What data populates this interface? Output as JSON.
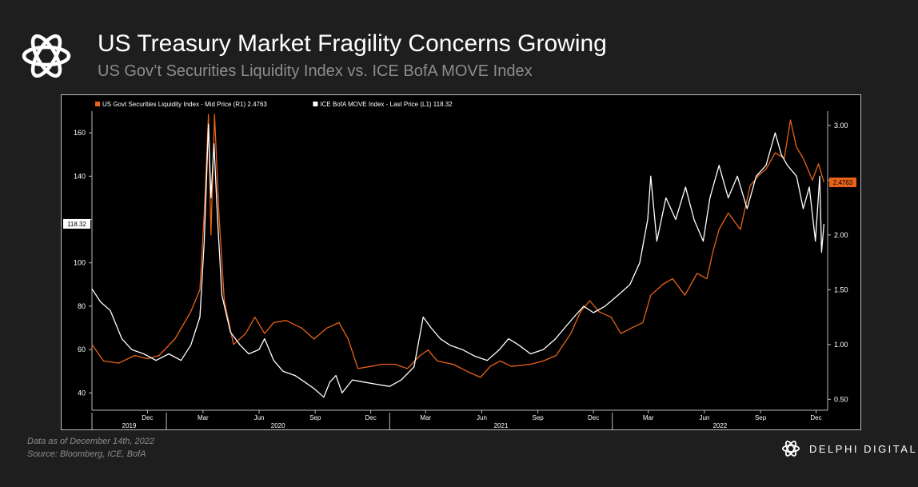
{
  "header": {
    "title": "US Treasury Market Fragility Concerns Growing",
    "subtitle": "US Gov’t Securities Liquidity Index vs. ICE BofA MOVE Index"
  },
  "footer": {
    "note_date": "Data as of December 14th, 2022",
    "note_source": "Source: Bloomberg, ICE, BofA",
    "brand": "DELPHI DIGITAL"
  },
  "colors": {
    "orange": "#e8621a",
    "white": "#ffffff",
    "axis": "#bdbdbd"
  },
  "chart_data": {
    "type": "line",
    "title": "",
    "legend_placement": "top-left",
    "grid": false,
    "x_range": [
      "2019-09-01",
      "2022-12-20"
    ],
    "y_left": {
      "ticks": [
        40,
        60,
        80,
        100,
        120,
        140,
        160
      ],
      "labels": [
        "40",
        "60",
        "80",
        "100",
        "",
        "140",
        "160"
      ],
      "range": [
        32,
        170
      ]
    },
    "y_right": {
      "ticks": [
        0.5,
        1.0,
        1.5,
        2.0,
        2.5,
        3.0
      ],
      "labels": [
        "0.50",
        "1.00",
        "1.50",
        "2.00",
        "",
        "3.00"
      ],
      "range": [
        0.4,
        3.13
      ]
    },
    "x_ticks": [
      {
        "date": "2019-12-01",
        "label": "Dec"
      },
      {
        "date": "2020-03-01",
        "label": "Mar"
      },
      {
        "date": "2020-06-01",
        "label": "Jun"
      },
      {
        "date": "2020-09-01",
        "label": "Sep"
      },
      {
        "date": "2020-12-01",
        "label": "Dec"
      },
      {
        "date": "2021-03-01",
        "label": "Mar"
      },
      {
        "date": "2021-06-01",
        "label": "Jun"
      },
      {
        "date": "2021-09-01",
        "label": "Sep"
      },
      {
        "date": "2021-12-01",
        "label": "Dec"
      },
      {
        "date": "2022-03-01",
        "label": "Mar"
      },
      {
        "date": "2022-06-01",
        "label": "Jun"
      },
      {
        "date": "2022-09-01",
        "label": "Sep"
      },
      {
        "date": "2022-12-01",
        "label": "Dec"
      }
    ],
    "years": [
      {
        "label": "2019",
        "start": "2019-09-01",
        "end": "2020-01-01"
      },
      {
        "label": "2020",
        "start": "2020-01-01",
        "end": "2021-01-01"
      },
      {
        "label": "2021",
        "start": "2021-01-01",
        "end": "2022-01-01"
      },
      {
        "label": "2022",
        "start": "2022-01-01",
        "end": "2022-12-20"
      }
    ],
    "series": [
      {
        "name": "US Govt Securities Liquidity Index - Mid Price (R1) 2.4763",
        "axis": "right",
        "color": "#e8621a",
        "last_value_label": "2.4763",
        "points": [
          [
            "2019-09-01",
            1.0
          ],
          [
            "2019-09-20",
            0.85
          ],
          [
            "2019-10-15",
            0.83
          ],
          [
            "2019-11-10",
            0.9
          ],
          [
            "2019-12-01",
            0.87
          ],
          [
            "2019-12-20",
            0.9
          ],
          [
            "2020-01-15",
            1.05
          ],
          [
            "2020-02-10",
            1.3
          ],
          [
            "2020-02-25",
            1.5
          ],
          [
            "2020-03-03",
            2.2
          ],
          [
            "2020-03-10",
            3.1
          ],
          [
            "2020-03-14",
            2.0
          ],
          [
            "2020-03-20",
            3.1
          ],
          [
            "2020-03-27",
            2.2
          ],
          [
            "2020-04-05",
            1.4
          ],
          [
            "2020-04-20",
            1.0
          ],
          [
            "2020-05-10",
            1.1
          ],
          [
            "2020-05-25",
            1.25
          ],
          [
            "2020-06-10",
            1.1
          ],
          [
            "2020-06-25",
            1.2
          ],
          [
            "2020-07-15",
            1.22
          ],
          [
            "2020-08-10",
            1.15
          ],
          [
            "2020-08-30",
            1.05
          ],
          [
            "2020-09-20",
            1.15
          ],
          [
            "2020-10-10",
            1.2
          ],
          [
            "2020-10-25",
            1.05
          ],
          [
            "2020-11-10",
            0.78
          ],
          [
            "2020-12-01",
            0.8
          ],
          [
            "2020-12-20",
            0.82
          ],
          [
            "2021-01-10",
            0.82
          ],
          [
            "2021-01-30",
            0.78
          ],
          [
            "2021-02-20",
            0.9
          ],
          [
            "2021-03-05",
            0.95
          ],
          [
            "2021-03-20",
            0.85
          ],
          [
            "2021-04-15",
            0.82
          ],
          [
            "2021-05-10",
            0.75
          ],
          [
            "2021-05-30",
            0.7
          ],
          [
            "2021-06-15",
            0.8
          ],
          [
            "2021-07-01",
            0.85
          ],
          [
            "2021-07-20",
            0.8
          ],
          [
            "2021-08-20",
            0.82
          ],
          [
            "2021-09-10",
            0.85
          ],
          [
            "2021-10-01",
            0.9
          ],
          [
            "2021-10-25",
            1.1
          ],
          [
            "2021-11-10",
            1.3
          ],
          [
            "2021-11-25",
            1.4
          ],
          [
            "2021-12-10",
            1.3
          ],
          [
            "2021-12-30",
            1.25
          ],
          [
            "2022-01-15",
            1.1
          ],
          [
            "2022-02-01",
            1.15
          ],
          [
            "2022-02-20",
            1.2
          ],
          [
            "2022-03-05",
            1.45
          ],
          [
            "2022-03-25",
            1.55
          ],
          [
            "2022-04-10",
            1.6
          ],
          [
            "2022-04-30",
            1.45
          ],
          [
            "2022-05-20",
            1.65
          ],
          [
            "2022-06-05",
            1.6
          ],
          [
            "2022-06-15",
            1.85
          ],
          [
            "2022-06-25",
            2.05
          ],
          [
            "2022-07-10",
            2.2
          ],
          [
            "2022-07-30",
            2.05
          ],
          [
            "2022-08-15",
            2.45
          ],
          [
            "2022-08-30",
            2.55
          ],
          [
            "2022-09-10",
            2.6
          ],
          [
            "2022-09-25",
            2.75
          ],
          [
            "2022-10-10",
            2.7
          ],
          [
            "2022-10-20",
            3.05
          ],
          [
            "2022-10-30",
            2.8
          ],
          [
            "2022-11-10",
            2.7
          ],
          [
            "2022-11-25",
            2.5
          ],
          [
            "2022-12-05",
            2.65
          ],
          [
            "2022-12-14",
            2.48
          ]
        ]
      },
      {
        "name": "ICE BofA MOVE Index - Last Price (L1) 118.32",
        "axis": "left",
        "color": "#ffffff",
        "last_value_label": "118.32",
        "points": [
          [
            "2019-09-01",
            88
          ],
          [
            "2019-09-15",
            82
          ],
          [
            "2019-10-01",
            78
          ],
          [
            "2019-10-20",
            65
          ],
          [
            "2019-11-05",
            60
          ],
          [
            "2019-11-25",
            58
          ],
          [
            "2019-12-15",
            55
          ],
          [
            "2020-01-05",
            58
          ],
          [
            "2020-01-25",
            55
          ],
          [
            "2020-02-10",
            62
          ],
          [
            "2020-02-25",
            75
          ],
          [
            "2020-03-03",
            110
          ],
          [
            "2020-03-07",
            140
          ],
          [
            "2020-03-10",
            164
          ],
          [
            "2020-03-14",
            130
          ],
          [
            "2020-03-19",
            155
          ],
          [
            "2020-03-25",
            120
          ],
          [
            "2020-04-01",
            85
          ],
          [
            "2020-04-15",
            68
          ],
          [
            "2020-05-01",
            62
          ],
          [
            "2020-05-15",
            58
          ],
          [
            "2020-06-01",
            60
          ],
          [
            "2020-06-10",
            65
          ],
          [
            "2020-06-25",
            55
          ],
          [
            "2020-07-10",
            50
          ],
          [
            "2020-07-30",
            48
          ],
          [
            "2020-08-15",
            45
          ],
          [
            "2020-08-30",
            42
          ],
          [
            "2020-09-15",
            38
          ],
          [
            "2020-09-25",
            45
          ],
          [
            "2020-10-05",
            48
          ],
          [
            "2020-10-15",
            40
          ],
          [
            "2020-11-01",
            46
          ],
          [
            "2020-11-20",
            45
          ],
          [
            "2020-12-10",
            44
          ],
          [
            "2021-01-01",
            43
          ],
          [
            "2021-01-20",
            46
          ],
          [
            "2021-02-10",
            52
          ],
          [
            "2021-02-25",
            75
          ],
          [
            "2021-03-10",
            70
          ],
          [
            "2021-03-25",
            65
          ],
          [
            "2021-04-10",
            62
          ],
          [
            "2021-04-30",
            60
          ],
          [
            "2021-05-20",
            57
          ],
          [
            "2021-06-10",
            55
          ],
          [
            "2021-06-30",
            60
          ],
          [
            "2021-07-15",
            65
          ],
          [
            "2021-08-01",
            62
          ],
          [
            "2021-08-20",
            58
          ],
          [
            "2021-09-10",
            60
          ],
          [
            "2021-09-30",
            65
          ],
          [
            "2021-10-15",
            70
          ],
          [
            "2021-10-30",
            75
          ],
          [
            "2021-11-15",
            80
          ],
          [
            "2021-12-01",
            77
          ],
          [
            "2021-12-20",
            80
          ],
          [
            "2022-01-10",
            85
          ],
          [
            "2022-01-30",
            90
          ],
          [
            "2022-02-15",
            100
          ],
          [
            "2022-02-28",
            120
          ],
          [
            "2022-03-05",
            140
          ],
          [
            "2022-03-15",
            110
          ],
          [
            "2022-03-30",
            130
          ],
          [
            "2022-04-15",
            120
          ],
          [
            "2022-05-01",
            135
          ],
          [
            "2022-05-15",
            120
          ],
          [
            "2022-05-30",
            110
          ],
          [
            "2022-06-10",
            130
          ],
          [
            "2022-06-15],",
            150
          ],
          [
            "2022-06-25",
            145
          ],
          [
            "2022-07-10",
            130
          ],
          [
            "2022-07-25",
            140
          ],
          [
            "2022-08-10",
            125
          ],
          [
            "2022-08-25",
            140
          ],
          [
            "2022-09-10",
            145
          ],
          [
            "2022-09-25",
            160
          ],
          [
            "2022-10-05",
            150
          ],
          [
            "2022-10-15",
            145
          ],
          [
            "2022-10-30",
            140
          ],
          [
            "2022-11-10",
            125
          ],
          [
            "2022-11-20",
            135
          ],
          [
            "2022-11-30",
            110
          ],
          [
            "2022-12-07",
            140
          ],
          [
            "2022-12-10",
            105
          ],
          [
            "2022-12-14",
            118
          ]
        ]
      }
    ]
  }
}
